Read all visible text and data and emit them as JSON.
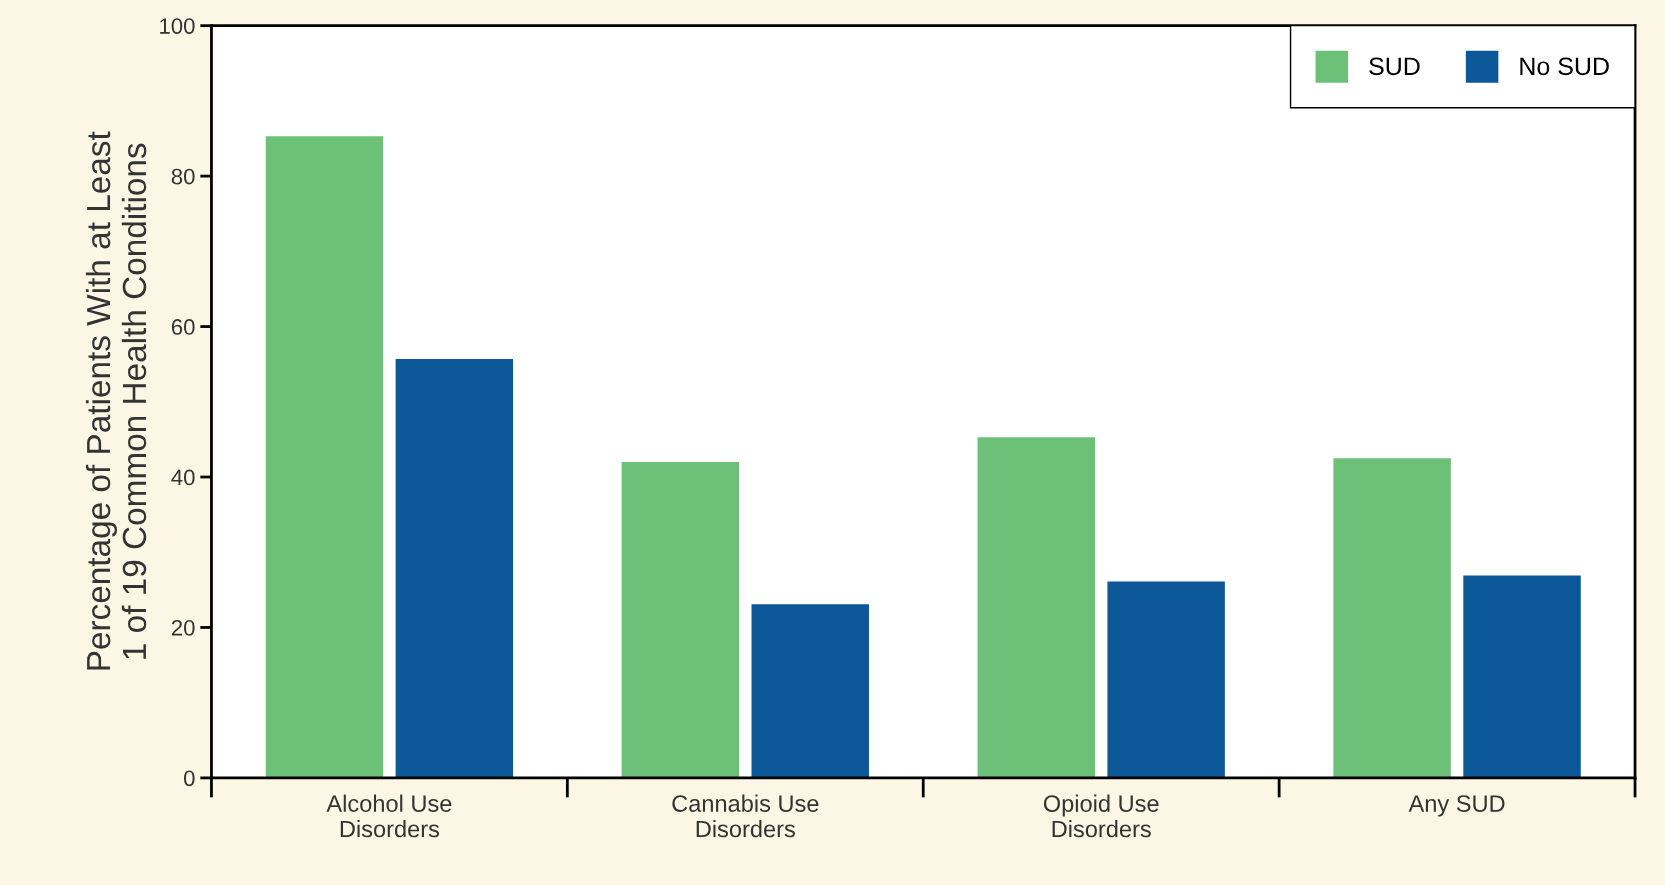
{
  "chart_data": {
    "type": "bar",
    "ylabel": "Percentage of Patients With at Least\n1 of 19 Common Health Conditions",
    "categories": [
      "Alcohol Use\nDisorders",
      "Cannabis Use\nDisorders",
      "Opioid Use\nDisorders",
      "Any SUD"
    ],
    "series": [
      {
        "name": "SUD",
        "color": "#6cc077",
        "values": [
          85.3,
          42.0,
          45.3,
          42.5
        ]
      },
      {
        "name": "No SUD",
        "color": "#0b5797",
        "values": [
          55.7,
          23.1,
          26.1,
          26.9
        ]
      }
    ],
    "ylim": [
      0,
      100
    ],
    "yticks": [
      0,
      20,
      40,
      60,
      80,
      100
    ],
    "grid": false,
    "legend": "top right"
  }
}
